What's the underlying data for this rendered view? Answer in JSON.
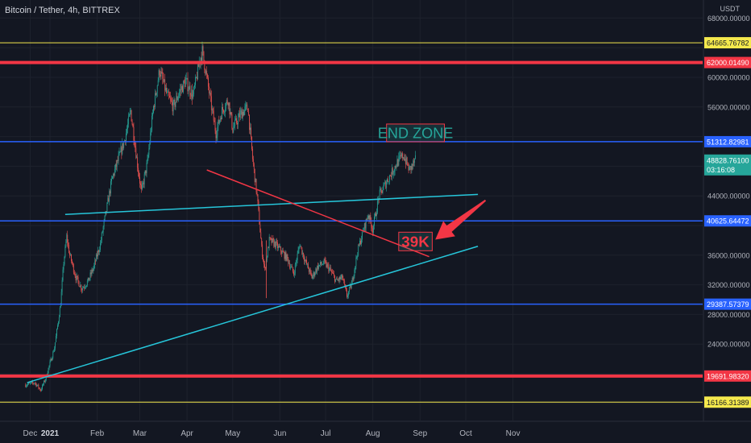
{
  "header": {
    "symbol": "Bitcoin / Tether, 4h, BITTREX"
  },
  "y_axis": {
    "unit": "USDT"
  },
  "chart_data": {
    "type": "candlestick",
    "title": "Bitcoin / Tether, 4h, BITTREX",
    "ylim": [
      14500,
      68500
    ],
    "y_ticks": [
      68000,
      64000,
      60000,
      56000,
      52000,
      48000,
      44000,
      40000,
      36000,
      32000,
      28000,
      24000,
      20000,
      16000
    ],
    "x_ticks": [
      {
        "label": "Dec",
        "day": -13,
        "bold": false
      },
      {
        "label": "2021",
        "day": 0,
        "bold": true
      },
      {
        "label": "Feb",
        "day": 31,
        "bold": false
      },
      {
        "label": "Mar",
        "day": 59,
        "bold": false
      },
      {
        "label": "Apr",
        "day": 90,
        "bold": false
      },
      {
        "label": "May",
        "day": 120,
        "bold": false
      },
      {
        "label": "Jun",
        "day": 151,
        "bold": false
      },
      {
        "label": "Jul",
        "day": 181,
        "bold": false
      },
      {
        "label": "Aug",
        "day": 212,
        "bold": false
      },
      {
        "label": "Sep",
        "day": 243,
        "bold": false
      },
      {
        "label": "Oct",
        "day": 273,
        "bold": false
      },
      {
        "label": "Nov",
        "day": 304,
        "bold": false
      }
    ],
    "price_path": [
      [
        -16,
        18500
      ],
      [
        -10,
        18800
      ],
      [
        -6,
        17800
      ],
      [
        -3,
        19300
      ],
      [
        3,
        23500
      ],
      [
        7,
        29500
      ],
      [
        9,
        35000
      ],
      [
        11,
        38500
      ],
      [
        13,
        36000
      ],
      [
        17,
        33000
      ],
      [
        21,
        31500
      ],
      [
        25,
        32500
      ],
      [
        29,
        34500
      ],
      [
        33,
        37500
      ],
      [
        37,
        42000
      ],
      [
        41,
        46500
      ],
      [
        45,
        49000
      ],
      [
        49,
        51500
      ],
      [
        53,
        55500
      ],
      [
        57,
        49000
      ],
      [
        60,
        44500
      ],
      [
        64,
        48500
      ],
      [
        68,
        56000
      ],
      [
        72,
        61000
      ],
      [
        77,
        57500
      ],
      [
        81,
        56000
      ],
      [
        85,
        58000
      ],
      [
        89,
        59500
      ],
      [
        94,
        57500
      ],
      [
        98,
        62000
      ],
      [
        100,
        63500
      ],
      [
        103,
        60000
      ],
      [
        106,
        56000
      ],
      [
        109,
        52500
      ],
      [
        113,
        55500
      ],
      [
        117,
        57000
      ],
      [
        120,
        53000
      ],
      [
        125,
        55000
      ],
      [
        130,
        56000
      ],
      [
        133,
        49000
      ],
      [
        136,
        44000
      ],
      [
        139,
        37000
      ],
      [
        141,
        34000
      ],
      [
        144,
        38000
      ],
      [
        148,
        37500
      ],
      [
        152,
        36500
      ],
      [
        156,
        35500
      ],
      [
        160,
        33500
      ],
      [
        164,
        37500
      ],
      [
        168,
        35000
      ],
      [
        172,
        33000
      ],
      [
        176,
        34500
      ],
      [
        180,
        35000
      ],
      [
        184,
        34000
      ],
      [
        188,
        32500
      ],
      [
        192,
        33000
      ],
      [
        195,
        30500
      ],
      [
        198,
        32000
      ],
      [
        202,
        36500
      ],
      [
        206,
        39500
      ],
      [
        209,
        41500
      ],
      [
        212,
        39500
      ],
      [
        216,
        44000
      ],
      [
        220,
        45500
      ],
      [
        224,
        47000
      ],
      [
        228,
        48500
      ],
      [
        232,
        49500
      ],
      [
        236,
        47500
      ],
      [
        240,
        48800
      ]
    ],
    "horizontal_levels": [
      {
        "value": 64665.76782,
        "label": "64665.76782",
        "color": "#f5e94d",
        "width": 1
      },
      {
        "value": 62000.0149,
        "label": "62000.01490",
        "color": "#f23645",
        "width": 4
      },
      {
        "value": 51312.82981,
        "label": "51312.82981",
        "color": "#2962ff",
        "width": 1.5
      },
      {
        "value": 40625.64472,
        "label": "40625.64472",
        "color": "#2962ff",
        "width": 1.5
      },
      {
        "value": 29387.57379,
        "label": "29387.57379",
        "color": "#2962ff",
        "width": 1.5
      },
      {
        "value": 19691.9832,
        "label": "19691.98320",
        "color": "#f23645",
        "width": 4
      },
      {
        "value": 16166.31389,
        "label": "16166.31389",
        "color": "#f5e94d",
        "width": 1
      }
    ],
    "trend_lines": [
      {
        "from": [
          -15,
          18800
        ],
        "to": [
          281,
          37200
        ],
        "color": "#26c6da"
      },
      {
        "from": [
          10,
          41500
        ],
        "to": [
          281,
          44200
        ],
        "color": "#26c6da"
      },
      {
        "from": [
          103,
          47500
        ],
        "to": [
          249,
          35800
        ],
        "color": "#f23645"
      }
    ],
    "last_price": {
      "value": 48828.761,
      "label": "48828.76100",
      "countdown": "03:16:08"
    },
    "annotations": [
      {
        "text": "END ZONE",
        "x1": 221,
        "x2": 259,
        "y1": 53700,
        "y2": 51300,
        "text_color": "#26a69a",
        "border": "#f23645"
      },
      {
        "text": "39K",
        "x1": 229,
        "x2": 251,
        "y1": 39100,
        "y2": 36600,
        "text_color": "#f23645",
        "border": "#f23645"
      }
    ],
    "arrow": {
      "from": [
        286,
        43400
      ],
      "to": [
        253,
        38100
      ],
      "color": "#f23645"
    }
  }
}
